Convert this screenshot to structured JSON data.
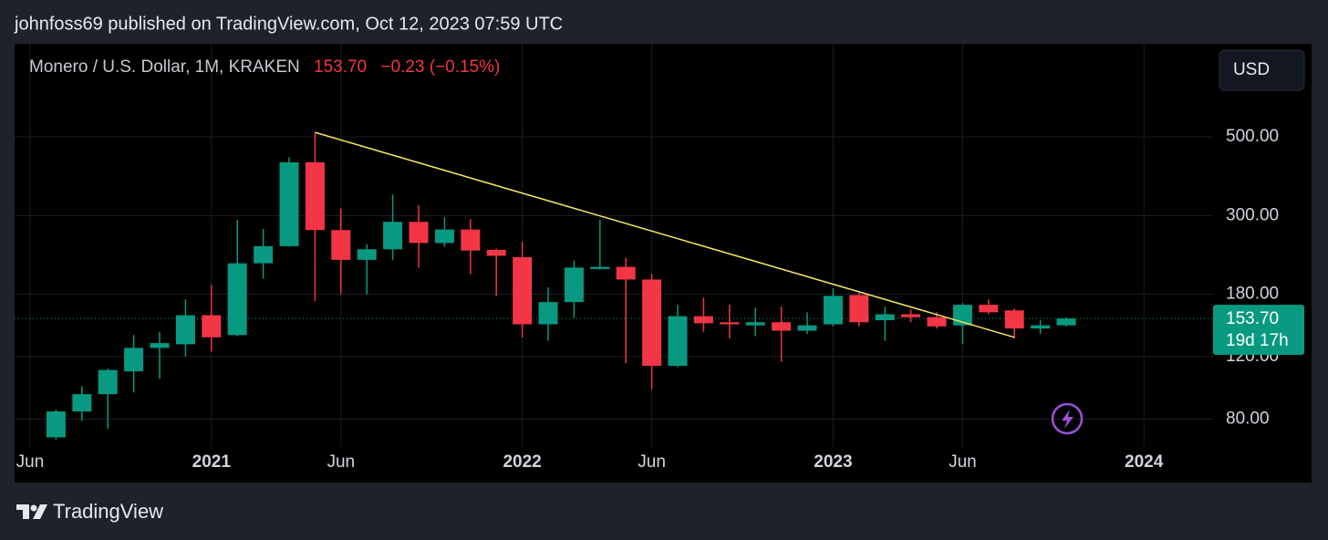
{
  "header": {
    "publisher": "johnfoss69 published on TradingView.com, Oct 12, 2023 07:59 UTC"
  },
  "chart_data": {
    "type": "candlestick",
    "symbol": "Monero / U.S. Dollar, 1M, KRAKEN",
    "change": "−0.23 (−0.15%)",
    "currency": "USD",
    "last_price": {
      "value": 153.7,
      "label": "153.70"
    },
    "countdown": "19d 17h",
    "up_color": "#089981",
    "down_color": "#f23645",
    "log_scale": true,
    "grid": true,
    "x": [
      "2020-07",
      "2020-08",
      "2020-09",
      "2020-10",
      "2020-11",
      "2020-12",
      "2021-01",
      "2021-02",
      "2021-03",
      "2021-04",
      "2021-05",
      "2021-06",
      "2021-07",
      "2021-08",
      "2021-09",
      "2021-10",
      "2021-11",
      "2021-12",
      "2022-01",
      "2022-02",
      "2022-03",
      "2022-04",
      "2022-05",
      "2022-06",
      "2022-07",
      "2022-08",
      "2022-09",
      "2022-10",
      "2022-11",
      "2022-12",
      "2023-01",
      "2023-02",
      "2023-03",
      "2023-04",
      "2023-05",
      "2023-06",
      "2023-07",
      "2023-08",
      "2023-09",
      "2023-10"
    ],
    "open": [
      71,
      84,
      94,
      109,
      127,
      130,
      157,
      138,
      220,
      246,
      424,
      273,
      225,
      241,
      288,
      251,
      274,
      240,
      229,
      148,
      171,
      212,
      215,
      198,
      113,
      156,
      150,
      147,
      150,
      142,
      148,
      179,
      152,
      158,
      155,
      147,
      168,
      162,
      144,
      147
    ],
    "high": [
      85,
      99,
      111,
      138,
      141,
      174,
      191,
      292,
      275,
      438,
      515,
      314,
      249,
      344,
      321,
      297,
      293,
      242,
      253,
      188,
      224,
      292,
      228,
      205,
      168,
      176,
      168,
      165,
      166,
      160,
      187,
      182,
      166,
      163,
      160,
      170,
      174,
      164,
      152,
      155
    ],
    "low": [
      70,
      79,
      75,
      95,
      104,
      120,
      124,
      137,
      199,
      245,
      172,
      180,
      180,
      225,
      214,
      245,
      205,
      178,
      136,
      133,
      154,
      211,
      115,
      97,
      112,
      141,
      135,
      137,
      116,
      139,
      146,
      146,
      133,
      150,
      144,
      130,
      158,
      135,
      139,
      146
    ],
    "close": [
      84,
      94,
      110,
      127,
      131,
      157,
      136,
      220,
      246,
      424,
      273,
      225,
      241,
      288,
      251,
      274,
      239,
      231,
      148,
      171,
      214,
      215,
      198,
      113,
      156,
      149,
      148,
      150,
      142,
      147,
      178,
      150,
      158,
      155,
      146,
      168,
      160,
      144,
      147,
      153.7
    ],
    "xlim": [
      "2020-06",
      "2024-03"
    ],
    "xticks": [
      {
        "value": "2020-06",
        "label": "Jun"
      },
      {
        "value": "2021-01",
        "label": "2021"
      },
      {
        "value": "2021-06",
        "label": "Jun"
      },
      {
        "value": "2022-01",
        "label": "2022"
      },
      {
        "value": "2022-06",
        "label": "Jun"
      },
      {
        "value": "2023-01",
        "label": "2023"
      },
      {
        "value": "2023-06",
        "label": "Jun"
      },
      {
        "value": "2024-01",
        "label": "2024"
      }
    ],
    "ylim": [
      66.7,
      916
    ],
    "yticks": [
      {
        "value": 80,
        "label": "80.00"
      },
      {
        "value": 120,
        "label": "120.00"
      },
      {
        "value": 180,
        "label": "180.00"
      },
      {
        "value": 300,
        "label": "300.00"
      },
      {
        "value": 500,
        "label": "500.00"
      }
    ],
    "trendline": {
      "color": "#f5e663",
      "points": [
        {
          "x": "2021-05",
          "y": 515
        },
        {
          "x": "2023-08",
          "y": 136
        }
      ]
    }
  },
  "footer": {
    "brand": "TradingView"
  }
}
